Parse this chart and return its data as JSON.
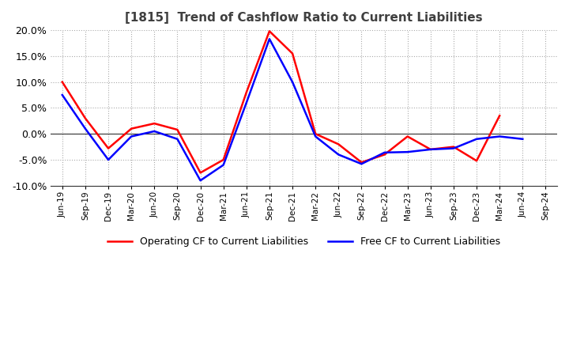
{
  "title": "[1815]  Trend of Cashflow Ratio to Current Liabilities",
  "title_color": "#404040",
  "background_color": "#ffffff",
  "plot_background": "#ffffff",
  "grid_color": "#aaaaaa",
  "x_labels": [
    "Jun-19",
    "Sep-19",
    "Dec-19",
    "Mar-20",
    "Jun-20",
    "Sep-20",
    "Dec-20",
    "Mar-21",
    "Jun-21",
    "Sep-21",
    "Dec-21",
    "Mar-22",
    "Jun-22",
    "Sep-22",
    "Dec-22",
    "Mar-23",
    "Jun-23",
    "Sep-23",
    "Dec-23",
    "Mar-24",
    "Jun-24",
    "Sep-24"
  ],
  "operating_cf": [
    0.1,
    0.03,
    -0.028,
    0.01,
    0.02,
    0.008,
    -0.075,
    -0.05,
    0.08,
    0.198,
    0.155,
    0.0,
    -0.02,
    -0.055,
    -0.04,
    -0.005,
    -0.03,
    -0.025,
    -0.052,
    0.035,
    null,
    null
  ],
  "free_cf": [
    0.075,
    0.01,
    -0.05,
    -0.005,
    0.005,
    -0.01,
    -0.09,
    -0.06,
    0.06,
    0.183,
    0.1,
    -0.005,
    -0.04,
    -0.058,
    -0.036,
    -0.035,
    -0.03,
    -0.028,
    -0.01,
    -0.005,
    -0.01,
    null
  ],
  "operating_color": "#ff0000",
  "free_color": "#0000ff",
  "ylim": [
    -0.1,
    0.2
  ],
  "yticks": [
    -0.1,
    -0.05,
    0.0,
    0.05,
    0.1,
    0.15,
    0.2
  ],
  "legend_labels": [
    "Operating CF to Current Liabilities",
    "Free CF to Current Liabilities"
  ],
  "line_width": 1.8
}
